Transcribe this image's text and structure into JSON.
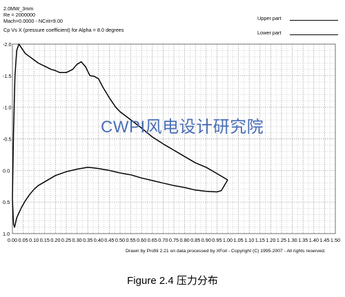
{
  "header": {
    "line1": "2.0MW_3mm",
    "line2": "Re = 2000000",
    "line3": "Mach=0.0000 - NCrit=9.00",
    "line4": "Cp Vs X    (pressure coefficient) for Alpha = 8.0 degrees"
  },
  "legend": {
    "upper": "Upper part",
    "lower": "Lower part"
  },
  "watermark": "CWPI风电设计研究院",
  "credit": "Drawn by Profili 2.21 on data processed by  XFoil - Copyright (C) 1995-2007 - All rights reserved.",
  "caption": "Figure 2.4  压力分布",
  "chart_data": {
    "type": "line",
    "title": "Cp Vs X    (pressure coefficient) for Alpha = 8.0 degrees",
    "xlabel": "",
    "ylabel": "",
    "xlim": [
      0,
      1.5
    ],
    "ylim": [
      -2.0,
      1.0
    ],
    "y_inverted": true,
    "grid": true,
    "legend_position": "top-right",
    "x_ticks": [
      "0.00",
      "0.05",
      "0.10",
      "0.15",
      "0.20",
      "0.25",
      "0.30",
      "0.35",
      "0.40",
      "0.45",
      "0.50",
      "0.55",
      "0.60",
      "0.65",
      "0.70",
      "0.75",
      "0.80",
      "0.85",
      "0.90",
      "0.95",
      "1.00",
      "1.05",
      "1.10",
      "1.15",
      "1.20",
      "1.25",
      "1.30",
      "1.35",
      "1.40",
      "1.45",
      "1.50"
    ],
    "y_ticks": [
      "-2.0",
      "-1.5",
      "-1.0",
      "-0.5",
      "0.0",
      "0.5",
      "1.0"
    ],
    "series": [
      {
        "name": "Upper part",
        "x": [
          0.0,
          0.005,
          0.012,
          0.02,
          0.03,
          0.04,
          0.05,
          0.06,
          0.08,
          0.1,
          0.12,
          0.15,
          0.18,
          0.2,
          0.22,
          0.25,
          0.28,
          0.3,
          0.32,
          0.34,
          0.35,
          0.36,
          0.38,
          0.4,
          0.42,
          0.45,
          0.48,
          0.5,
          0.55,
          0.6,
          0.65,
          0.7,
          0.75,
          0.8,
          0.85,
          0.9,
          0.95,
          1.0
        ],
        "values": [
          0.45,
          -0.6,
          -1.5,
          -1.9,
          -2.0,
          -1.95,
          -1.9,
          -1.85,
          -1.8,
          -1.75,
          -1.7,
          -1.65,
          -1.6,
          -1.58,
          -1.55,
          -1.55,
          -1.6,
          -1.68,
          -1.72,
          -1.64,
          -1.57,
          -1.5,
          -1.49,
          -1.45,
          -1.32,
          -1.15,
          -1.0,
          -0.93,
          -0.8,
          -0.67,
          -0.53,
          -0.42,
          -0.32,
          -0.22,
          -0.12,
          -0.05,
          0.05,
          0.15
        ]
      },
      {
        "name": "Lower part",
        "x": [
          0.0,
          0.005,
          0.01,
          0.02,
          0.04,
          0.06,
          0.08,
          0.1,
          0.12,
          0.15,
          0.18,
          0.2,
          0.25,
          0.3,
          0.35,
          0.38,
          0.4,
          0.45,
          0.5,
          0.55,
          0.6,
          0.65,
          0.7,
          0.75,
          0.8,
          0.85,
          0.9,
          0.95,
          0.97,
          1.0
        ],
        "values": [
          0.45,
          0.85,
          0.9,
          0.75,
          0.6,
          0.48,
          0.38,
          0.3,
          0.24,
          0.18,
          0.12,
          0.08,
          0.02,
          -0.02,
          -0.05,
          -0.04,
          -0.03,
          0.0,
          0.04,
          0.07,
          0.12,
          0.16,
          0.2,
          0.24,
          0.27,
          0.31,
          0.33,
          0.34,
          0.32,
          0.15
        ]
      }
    ]
  }
}
